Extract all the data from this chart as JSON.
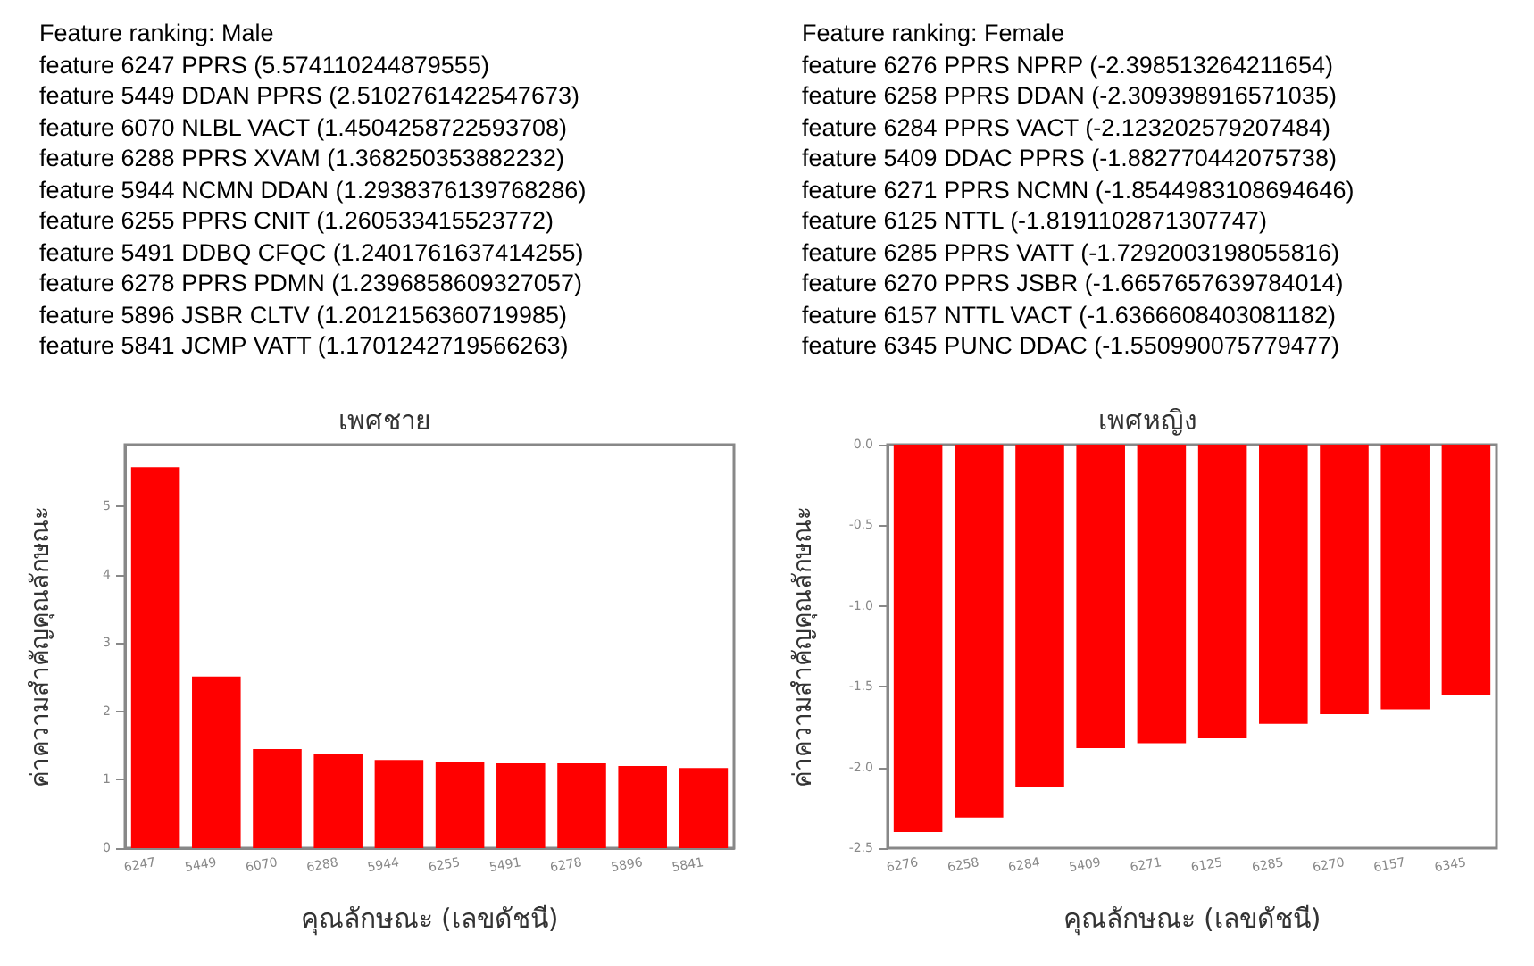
{
  "chart_data": [
    {
      "type": "bar",
      "title": "เพศชาย",
      "xlabel": "คุณลักษณะ (เลขดัชนี)",
      "ylabel": "ค่าความสำคัญคุณลักษณะ",
      "annotations": [
        "Feature ranking: Male",
        "feature 6247 PPRS (5.574110244879555)",
        "feature 5449 DDAN PPRS (2.5102761422547673)",
        "feature 6070 NLBL VACT (1.4504258722593708)",
        "feature 6288 PPRS XVAM (1.368250353882232)",
        "feature 5944 NCMN DDAN (1.2938376139768286)",
        "feature 6255 PPRS CNIT (1.260533415523772)",
        "feature 5491 DDBQ CFQC (1.2401761637414255)",
        "feature 6278 PPRS PDMN (1.2396858609327057)",
        "feature 5896 JSBR CLTV (1.2012156360719985)",
        "feature 5841 JCMP VATT (1.1701242719566263)"
      ],
      "categories": [
        "6247",
        "5449",
        "6070",
        "6288",
        "5944",
        "6255",
        "5491",
        "6278",
        "5896",
        "5841"
      ],
      "values": [
        5.57,
        2.51,
        1.45,
        1.37,
        1.29,
        1.26,
        1.24,
        1.24,
        1.2,
        1.17
      ],
      "color": "#ff0000",
      "ylim": [
        0,
        5.9
      ],
      "yticks": [
        0,
        1,
        2,
        3,
        4,
        5
      ],
      "grid": false
    },
    {
      "type": "bar",
      "title": "เพศหญิง",
      "xlabel": "คุณลักษณะ (เลขดัชนี)",
      "ylabel": "ค่าความสำคัญคุณลักษณะ",
      "annotations": [
        "Feature ranking: Female",
        "feature 6276 PPRS NPRP (-2.398513264211654)",
        "feature 6258 PPRS DDAN (-2.309398916571035)",
        "feature 6284 PPRS VACT (-2.123202579207484)",
        "feature 5409 DDAC PPRS (-1.882770442075738)",
        "feature 6271 PPRS NCMN (-1.8544983108694646)",
        "feature 6125 NTTL (-1.8191102871307747)",
        "feature 6285 PPRS VATT (-1.7292003198055816)",
        "feature 6270 PPRS JSBR (-1.6657657639784014)",
        "feature 6157 NTTL VACT (-1.6366608403081182)",
        "feature 6345 PUNC DDAC (-1.550990075779477)"
      ],
      "categories": [
        "6276",
        "6258",
        "6284",
        "5409",
        "6271",
        "6125",
        "6285",
        "6270",
        "6157",
        "6345"
      ],
      "values": [
        -2.4,
        -2.31,
        -2.12,
        -1.88,
        -1.85,
        -1.82,
        -1.73,
        -1.67,
        -1.64,
        -1.55
      ],
      "color": "#ff0000",
      "ylim": [
        -2.5,
        0
      ],
      "yticks": [
        {
          "value": -2.5,
          "label": "-2.5"
        },
        {
          "value": -2.0,
          "label": "-2.0"
        },
        {
          "value": -1.5,
          "label": "-1.5"
        },
        {
          "value": -1.0,
          "label": "-1.0"
        },
        {
          "value": -0.5,
          "label": "-0.5"
        },
        {
          "value": 0,
          "label": "0.0"
        }
      ],
      "grid": false
    }
  ]
}
